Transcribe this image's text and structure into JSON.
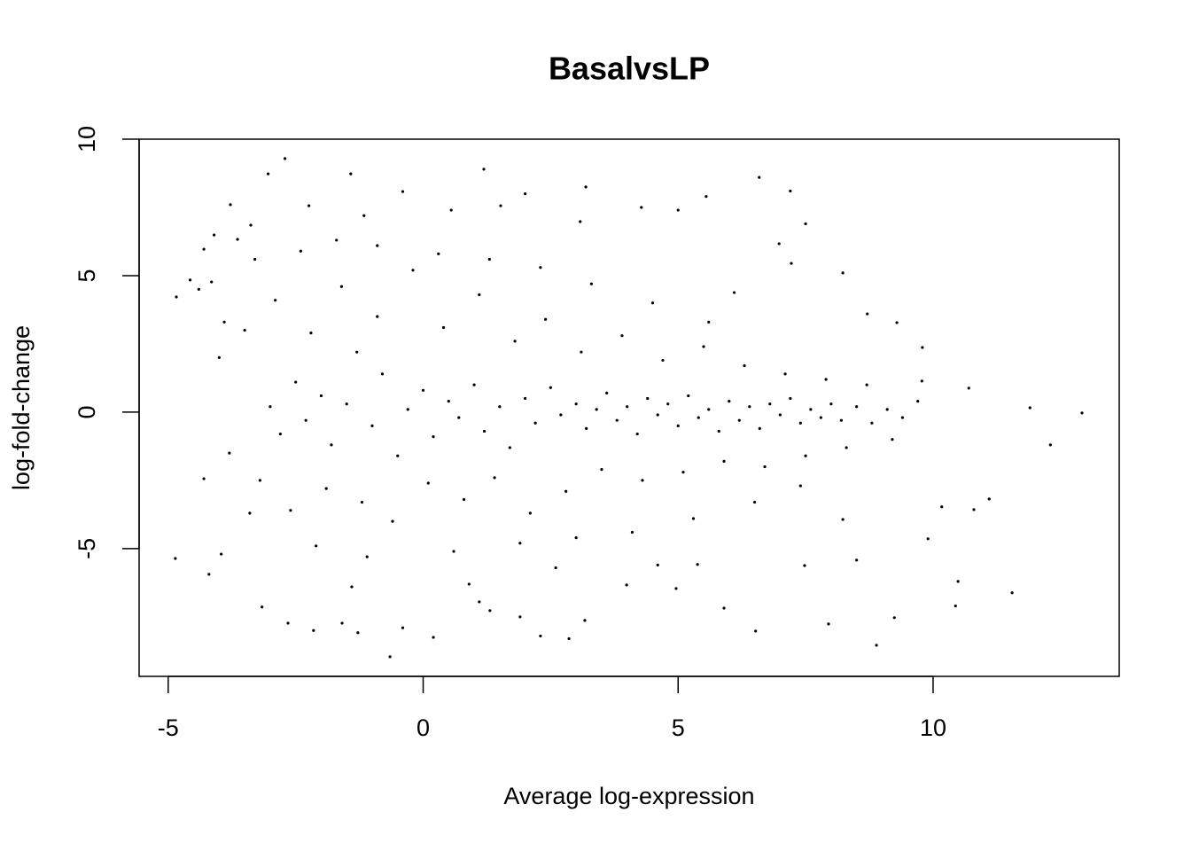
{
  "chart_data": {
    "type": "scatter",
    "title": "BasalvsLP",
    "x_label": "Average log-expression",
    "y_label": "log-fold-change",
    "color": "#000000",
    "xlim": [
      -5.57,
      13.65
    ],
    "ylim": [
      -9.68,
      10
    ],
    "xticks": [
      -5,
      0,
      5,
      10
    ],
    "yticks": [
      -5,
      0,
      5,
      10
    ],
    "grid": false,
    "x": [
      12.92,
      12.3,
      11.9,
      11.55,
      10.49,
      10.44,
      8.89,
      9.24,
      2.3,
      2.86,
      -0.65,
      0.2,
      -2.15,
      -4.86,
      -4.84,
      -2.71,
      1.19,
      3.19,
      6.59,
      7.2,
      -3.04,
      -1.42,
      -0.4,
      2.0,
      5.55,
      9.78,
      10.7,
      11.1,
      10.8,
      10.17,
      9.9,
      8.5,
      7.48,
      5.9,
      6.52,
      7.95,
      -3.78,
      -4.15,
      -4.57,
      -4.3,
      -3.96,
      -4.2,
      -3.16,
      -2.65,
      -1.59,
      -1.28,
      -0.4,
      1.1,
      1.31,
      1.9,
      3.17,
      3.99,
      4.96,
      5.38,
      8.23,
      9.29,
      9.79,
      8.71,
      8.23,
      7.22,
      7.5,
      6.98,
      6.1,
      5.0,
      4.28,
      3.08,
      1.52,
      0.55,
      -1.16,
      -2.24,
      -3.38,
      -3.64,
      -4.3,
      -4.1,
      -3.0,
      -2.8,
      -2.5,
      -2.3,
      -2.0,
      -1.8,
      -1.5,
      -1.3,
      -1.0,
      -0.8,
      -0.5,
      -0.3,
      0.0,
      0.2,
      0.5,
      0.7,
      1.0,
      1.2,
      1.5,
      1.7,
      2.0,
      2.2,
      2.5,
      2.7,
      3.0,
      3.2,
      3.4,
      3.6,
      3.8,
      4.0,
      4.2,
      4.4,
      4.6,
      4.8,
      5.0,
      5.2,
      5.4,
      5.6,
      5.8,
      6.0,
      6.2,
      6.4,
      6.6,
      6.8,
      7.0,
      7.2,
      7.4,
      7.6,
      7.8,
      8.0,
      8.2,
      8.5,
      8.8,
      9.1,
      9.4,
      9.7,
      -3.5,
      -3.2,
      -2.9,
      -2.6,
      -2.2,
      -1.9,
      -1.6,
      -1.2,
      -0.9,
      -0.6,
      -0.2,
      0.1,
      0.4,
      0.8,
      1.1,
      1.4,
      1.8,
      2.1,
      2.4,
      2.8,
      3.1,
      3.5,
      3.9,
      4.3,
      4.7,
      5.1,
      5.5,
      5.9,
      6.3,
      6.7,
      7.1,
      7.5,
      7.9,
      8.3,
      8.7,
      9.2,
      -4.0,
      -3.8,
      -4.4,
      -3.9,
      -3.3,
      -2.4,
      -1.7,
      -0.9,
      0.3,
      1.3,
      2.3,
      3.3,
      4.5,
      5.6,
      -3.4,
      -2.1,
      -1.1,
      0.6,
      1.9,
      3.0,
      4.1,
      5.3,
      6.5,
      7.4,
      -1.4,
      2.6,
      4.6,
      0.9
    ],
    "values": [
      -0.03,
      -1.2,
      0.16,
      -6.62,
      -6.2,
      -7.1,
      -8.54,
      -7.53,
      -8.2,
      -8.3,
      -8.96,
      -8.25,
      -8.0,
      -5.36,
      4.22,
      9.29,
      8.9,
      8.25,
      8.6,
      8.1,
      8.73,
      8.73,
      8.08,
      8.0,
      7.9,
      1.14,
      0.88,
      -3.18,
      -3.57,
      -3.47,
      -4.64,
      -5.42,
      -5.62,
      -7.18,
      -8.02,
      -7.76,
      7.6,
      4.77,
      4.84,
      -2.44,
      -5.2,
      -5.94,
      -7.14,
      -7.73,
      -7.73,
      -8.08,
      -7.9,
      -6.95,
      -7.27,
      -7.5,
      -7.63,
      -6.33,
      -6.46,
      -5.58,
      -3.93,
      3.28,
      2.37,
      3.6,
      5.1,
      5.45,
      6.9,
      6.17,
      4.38,
      7.4,
      7.5,
      6.98,
      7.56,
      7.4,
      7.2,
      7.56,
      6.85,
      6.33,
      5.97,
      6.49,
      0.2,
      -0.8,
      1.1,
      -0.3,
      0.6,
      -1.2,
      0.3,
      2.2,
      -0.5,
      1.4,
      -1.6,
      0.1,
      0.8,
      -0.9,
      0.4,
      -0.2,
      1.0,
      -0.7,
      0.2,
      -1.3,
      0.5,
      -0.4,
      0.9,
      -0.1,
      0.3,
      -0.6,
      0.1,
      0.7,
      -0.3,
      0.2,
      -0.8,
      0.5,
      -0.1,
      0.3,
      -0.5,
      0.6,
      -0.2,
      0.1,
      -0.7,
      0.4,
      -0.3,
      0.2,
      -0.6,
      0.3,
      -0.1,
      0.5,
      -0.4,
      0.1,
      -0.2,
      0.3,
      -0.3,
      0.2,
      -0.4,
      0.1,
      -0.2,
      0.4,
      3.0,
      -2.5,
      4.1,
      -3.6,
      2.9,
      -2.8,
      4.6,
      -3.3,
      3.5,
      -4.0,
      5.2,
      -2.6,
      3.1,
      -3.2,
      4.3,
      -2.4,
      2.6,
      -3.7,
      3.4,
      -2.9,
      2.2,
      -2.1,
      2.8,
      -2.5,
      1.9,
      -2.2,
      2.4,
      -1.8,
      1.7,
      -2.0,
      1.4,
      -1.6,
      1.2,
      -1.3,
      1.0,
      -1.0,
      2.0,
      -1.5,
      4.5,
      3.3,
      5.6,
      5.9,
      6.3,
      6.1,
      5.8,
      5.6,
      5.3,
      4.7,
      4.0,
      3.3,
      -3.7,
      -4.9,
      -5.3,
      -5.1,
      -4.8,
      -4.6,
      -4.4,
      -3.9,
      -3.3,
      -2.7,
      -6.4,
      -5.7,
      -5.6,
      -6.3
    ]
  }
}
